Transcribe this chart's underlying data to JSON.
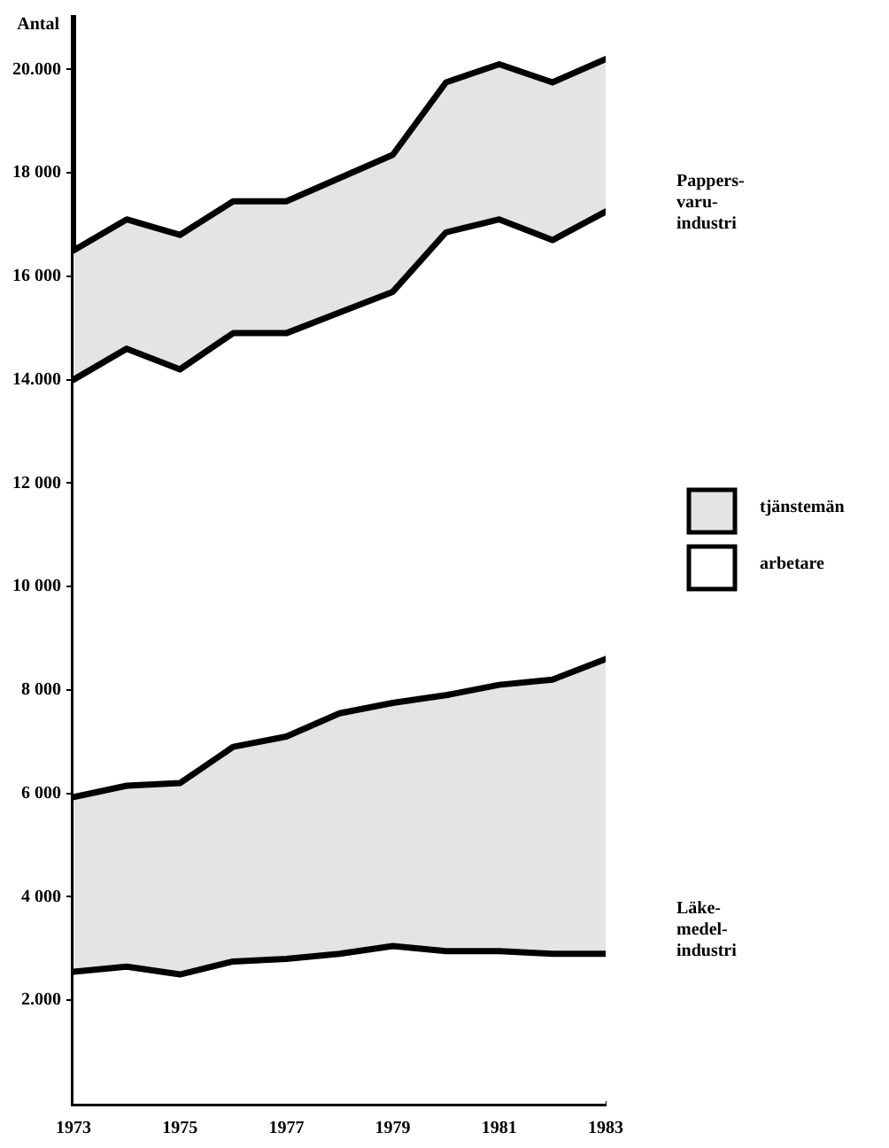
{
  "chart_data": {
    "type": "area",
    "ylabel": "Antal",
    "x": [
      1973,
      1974,
      1975,
      1976,
      1977,
      1978,
      1979,
      1980,
      1981,
      1982,
      1983
    ],
    "xlim": [
      1973,
      1983
    ],
    "xticks": [
      1973,
      1975,
      1977,
      1979,
      1981,
      1983
    ],
    "ylim": [
      0,
      21000
    ],
    "yticks": [
      {
        "value": 2000,
        "label": "2.000"
      },
      {
        "value": 4000,
        "label": "4 000"
      },
      {
        "value": 6000,
        "label": "6 000"
      },
      {
        "value": 8000,
        "label": "8 000"
      },
      {
        "value": 10000,
        "label": "10 000"
      },
      {
        "value": 12000,
        "label": "12 000"
      },
      {
        "value": 14000,
        "label": "14.000"
      },
      {
        "value": 16000,
        "label": "16 000"
      },
      {
        "value": 18000,
        "label": "18 000"
      },
      {
        "value": 20000,
        "label": "20.000"
      }
    ],
    "series": [
      {
        "name": "arbetare",
        "color": "#ffffff",
        "values": [
          2550,
          2650,
          2500,
          2750,
          2800,
          2900,
          3050,
          2950,
          2950,
          2900,
          2900
        ]
      },
      {
        "name": "tjänstemän",
        "color": "#e4e4e4",
        "values": [
          5930,
          6150,
          6200,
          6900,
          7100,
          7550,
          7750,
          7900,
          8100,
          8200,
          8600
        ]
      },
      {
        "color": "#ffffff",
        "values": [
          14000,
          14600,
          14200,
          14900,
          14900,
          15300,
          15700,
          16850,
          17100,
          16700,
          17250
        ]
      },
      {
        "color": "#e4e4e4",
        "values": [
          16500,
          17100,
          16800,
          17450,
          17450,
          17900,
          18350,
          19750,
          20100,
          19750,
          20200
        ]
      }
    ],
    "annotations": [
      "Pappers-\nvaru-\nindustri",
      "Läke-\nmedel-\nindustri"
    ],
    "legend": "right",
    "grid": false,
    "line_style": "solid"
  }
}
